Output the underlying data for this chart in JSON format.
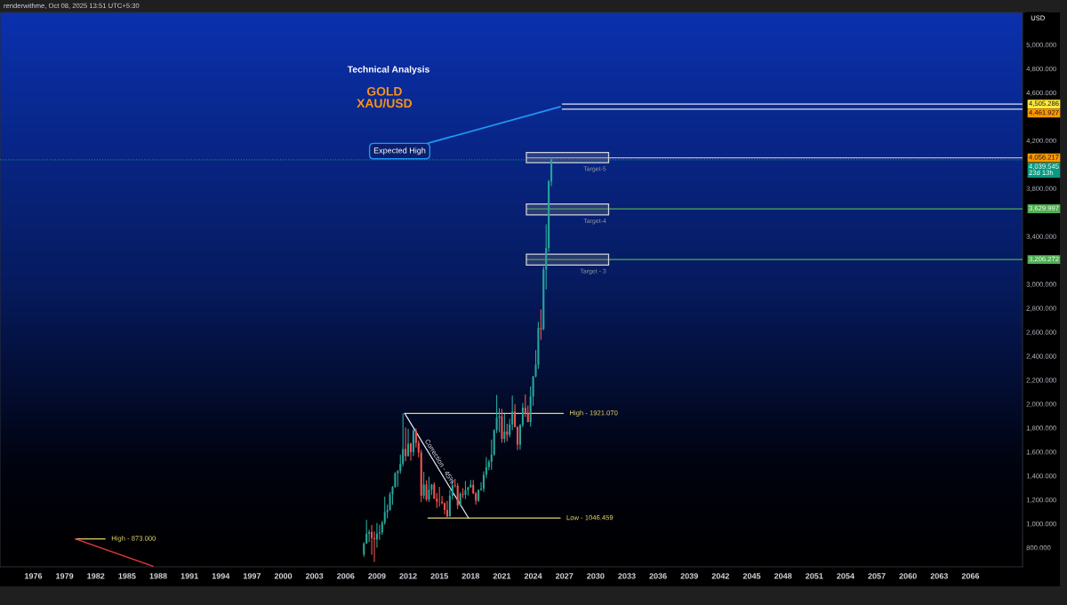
{
  "chart_data": {
    "type": "candlestick",
    "title": "Technical Analysis",
    "subtitle": "GOLD\nXAU/USD",
    "ylabel": "USD",
    "annotations": [
      "renderwithme, Oct 08, 2025 13:51 UTC+5:30",
      {
        "text": "Expected High",
        "x": 2026.6,
        "y": 4483
      }
    ],
    "x": [
      2007.75,
      2008.0,
      2008.25,
      2008.5,
      2008.75,
      2009.0,
      2009.25,
      2009.5,
      2009.75,
      2010.0,
      2010.25,
      2010.5,
      2010.75,
      2011.0,
      2011.25,
      2011.5,
      2011.75,
      2012.0,
      2012.25,
      2012.5,
      2012.75,
      2013.0,
      2013.25,
      2013.5,
      2013.75,
      2014.0,
      2014.25,
      2014.5,
      2014.75,
      2015.0,
      2015.25,
      2015.5,
      2015.75,
      2016.0,
      2016.25,
      2016.5,
      2016.75,
      2017.0,
      2017.25,
      2017.5,
      2017.75,
      2018.0,
      2018.25,
      2018.5,
      2018.75,
      2019.0,
      2019.25,
      2019.5,
      2019.75,
      2020.0,
      2020.25,
      2020.5,
      2020.75,
      2021.0,
      2021.25,
      2021.5,
      2021.75,
      2022.0,
      2022.25,
      2022.5,
      2022.75,
      2023.0,
      2023.25,
      2023.5,
      2023.75,
      2024.0,
      2024.25,
      2024.5,
      2024.75,
      2025.0,
      2025.25,
      2025.5,
      2025.75
    ],
    "ohlc": [
      [
        743,
        845,
        723,
        834
      ],
      [
        834,
        1033,
        832,
        916
      ],
      [
        916,
        950,
        845,
        930
      ],
      [
        930,
        988,
        740,
        880
      ],
      [
        880,
        935,
        681,
        870
      ],
      [
        870,
        1006,
        800,
        917
      ],
      [
        917,
        990,
        865,
        927
      ],
      [
        927,
        1024,
        908,
        1008
      ],
      [
        1008,
        1227,
        990,
        1096
      ],
      [
        1096,
        1162,
        1044,
        1113
      ],
      [
        1113,
        1265,
        1110,
        1244
      ],
      [
        1244,
        1315,
        1157,
        1307
      ],
      [
        1307,
        1431,
        1300,
        1421
      ],
      [
        1421,
        1448,
        1309,
        1439
      ],
      [
        1439,
        1577,
        1417,
        1500
      ],
      [
        1500,
        1921.07,
        1478,
        1624
      ],
      [
        1624,
        1803,
        1522,
        1565
      ],
      [
        1565,
        1792,
        1560,
        1669
      ],
      [
        1669,
        1677,
        1527,
        1598
      ],
      [
        1598,
        1790,
        1566,
        1776
      ],
      [
        1776,
        1796,
        1636,
        1675
      ],
      [
        1675,
        1696,
        1554,
        1595
      ],
      [
        1595,
        1617,
        1180,
        1234
      ],
      [
        1234,
        1434,
        1208,
        1327
      ],
      [
        1327,
        1361,
        1187,
        1202
      ],
      [
        1202,
        1392,
        1182,
        1284
      ],
      [
        1284,
        1332,
        1240,
        1327
      ],
      [
        1327,
        1345,
        1206,
        1210
      ],
      [
        1210,
        1255,
        1131,
        1184
      ],
      [
        1184,
        1307,
        1142,
        1183
      ],
      [
        1183,
        1232,
        1162,
        1172
      ],
      [
        1172,
        1178,
        1077,
        1115
      ],
      [
        1115,
        1191,
        1046.459,
        1061
      ],
      [
        1061,
        1282,
        1060,
        1233
      ],
      [
        1233,
        1362,
        1200,
        1321
      ],
      [
        1321,
        1375,
        1302,
        1316
      ],
      [
        1316,
        1337,
        1123,
        1152
      ],
      [
        1152,
        1264,
        1146,
        1249
      ],
      [
        1249,
        1296,
        1214,
        1242
      ],
      [
        1242,
        1357,
        1205,
        1280
      ],
      [
        1280,
        1307,
        1236,
        1303
      ],
      [
        1303,
        1366,
        1302,
        1325
      ],
      [
        1325,
        1365,
        1246,
        1253
      ],
      [
        1253,
        1265,
        1160,
        1192
      ],
      [
        1192,
        1287,
        1182,
        1282
      ],
      [
        1282,
        1346,
        1276,
        1292
      ],
      [
        1292,
        1438,
        1266,
        1409
      ],
      [
        1409,
        1557,
        1381,
        1472
      ],
      [
        1472,
        1535,
        1445,
        1517
      ],
      [
        1517,
        1703,
        1451,
        1577
      ],
      [
        1577,
        1788,
        1567,
        1781
      ],
      [
        1781,
        2075,
        1757,
        1886
      ],
      [
        1886,
        1966,
        1764,
        1898
      ],
      [
        1898,
        1959,
        1677,
        1708
      ],
      [
        1708,
        1916,
        1677,
        1770
      ],
      [
        1770,
        1834,
        1688,
        1743
      ],
      [
        1743,
        1877,
        1721,
        1829
      ],
      [
        1829,
        2070,
        1781,
        1937
      ],
      [
        1937,
        1998,
        1805,
        1807
      ],
      [
        1807,
        1814,
        1615,
        1660
      ],
      [
        1660,
        1833,
        1617,
        1824
      ],
      [
        1824,
        2009,
        1805,
        1969
      ],
      [
        1969,
        2079,
        1893,
        1919
      ],
      [
        1919,
        1987,
        1848,
        1849
      ],
      [
        1849,
        2146,
        1810,
        2063
      ],
      [
        2063,
        2236,
        1984,
        2230
      ],
      [
        2230,
        2450,
        2222,
        2327
      ],
      [
        2327,
        2685,
        2293,
        2635
      ],
      [
        2635,
        2790,
        2536,
        2625
      ],
      [
        2625,
        3148,
        2615,
        3124
      ],
      [
        3124,
        3500,
        2957,
        3303
      ],
      [
        3303,
        3872,
        3268,
        3859
      ],
      [
        3859,
        4059,
        3820,
        4039.545
      ]
    ],
    "colors": [
      "#26a69a",
      "#26a69a",
      "#26a69a",
      "#ef5350",
      "#ef5350",
      "#26a69a",
      "#26a69a",
      "#26a69a",
      "#26a69a",
      "#26a69a",
      "#26a69a",
      "#26a69a",
      "#26a69a",
      "#26a69a",
      "#26a69a",
      "#26a69a",
      "#ef5350",
      "#26a69a",
      "#ef5350",
      "#26a69a",
      "#ef5350",
      "#ef5350",
      "#ef5350",
      "#26a69a",
      "#ef5350",
      "#26a69a",
      "#26a69a",
      "#ef5350",
      "#ef5350",
      "#ef5350",
      "#ef5350",
      "#ef5350",
      "#ef5350",
      "#26a69a",
      "#26a69a",
      "#ef5350",
      "#ef5350",
      "#26a69a",
      "#ef5350",
      "#26a69a",
      "#26a69a",
      "#26a69a",
      "#ef5350",
      "#ef5350",
      "#26a69a",
      "#26a69a",
      "#26a69a",
      "#26a69a",
      "#26a69a",
      "#26a69a",
      "#26a69a",
      "#26a69a",
      "#26a69a",
      "#ef5350",
      "#26a69a",
      "#ef5350",
      "#26a69a",
      "#26a69a",
      "#ef5350",
      "#ef5350",
      "#26a69a",
      "#26a69a",
      "#ef5350",
      "#ef5350",
      "#26a69a",
      "#26a69a",
      "#26a69a",
      "#26a69a",
      "#ef5350",
      "#26a69a",
      "#26a69a",
      "#26a69a",
      "#26a69a"
    ],
    "series": [
      {
        "type": "line",
        "name": "High - 873.000",
        "color": "#e3d46a",
        "x": [
          1980.05,
          1982.9
        ],
        "values": [
          873,
          873
        ]
      },
      {
        "type": "line",
        "color": "#f23645",
        "x": [
          1980.05,
          1987.5
        ],
        "values": [
          873,
          645
        ]
      },
      {
        "type": "line",
        "name": "High - 1921.070",
        "color": "#e3d46a",
        "x": [
          2011.67,
          2026.9
        ],
        "values": [
          1921.07,
          1921.07
        ]
      },
      {
        "type": "line",
        "name": "Low - 1046.459",
        "color": "#e3d46a",
        "x": [
          2013.9,
          2026.6
        ],
        "values": [
          1046.459,
          1046.459
        ]
      },
      {
        "type": "line",
        "name": "Correction - 45%",
        "color": "#e0e3eb",
        "x": [
          2011.67,
          2017.8
        ],
        "values": [
          1921.07,
          1046.459
        ]
      },
      {
        "type": "line",
        "color": "#e0e3eb",
        "x": [
          2026.8,
          2071
        ],
        "values": [
          4505.286,
          4505.286
        ],
        "colors": [
          "#e0e3eb",
          "#ffeb3b"
        ],
        "value_labels": [
          null,
          "4,505.286"
        ]
      },
      {
        "type": "line",
        "color": "#e0e3eb",
        "x": [
          2026.8,
          2071
        ],
        "values": [
          4461.927,
          4461.927
        ],
        "colors": [
          "#e0e3eb",
          "#ff9800"
        ],
        "value_labels": [
          null,
          "4,461.927"
        ]
      },
      {
        "type": "line",
        "color": "#b2b5be",
        "x": [
          2023.4,
          2071
        ],
        "values": [
          4056.217,
          4056.217
        ],
        "colors": [
          "#b2b5be",
          "#ff9800"
        ],
        "value_labels": [
          null,
          "4,056.217"
        ]
      },
      {
        "type": "line",
        "color": "#4caf50",
        "x": [
          2023.4,
          2071
        ],
        "values": [
          3629.997,
          3629.997
        ],
        "colors": [
          "#4caf50",
          "#4caf50"
        ],
        "value_labels": [
          null,
          "3,629.997"
        ]
      },
      {
        "type": "line",
        "color": "#4caf50",
        "x": [
          2023.4,
          2071
        ],
        "values": [
          3206.272,
          3206.272
        ],
        "colors": [
          "#4caf50",
          "#4caf50"
        ],
        "value_labels": [
          null,
          "3,206.272"
        ]
      }
    ],
    "ref_lines": [
      {
        "axis": "y",
        "value": 4039.545,
        "label": "4,039.545\n23d 13h",
        "color": "#089981",
        "line_style": "dotted"
      }
    ],
    "bands": [
      {
        "axis": "y",
        "from": 4015,
        "to": 4100,
        "label": "Target-5",
        "color": "#787b86"
      },
      {
        "axis": "y",
        "from": 3580,
        "to": 3670,
        "label": "Target-4",
        "color": "#787b86"
      },
      {
        "axis": "y",
        "from": 3160,
        "to": 3250,
        "label": "Target - 3",
        "color": "#787b86"
      }
    ],
    "xlim": [
      1972.8,
      2071
    ],
    "xticks": [
      1976,
      1979,
      1982,
      1985,
      1988,
      1991,
      1994,
      1997,
      2000,
      2003,
      2006,
      2009,
      2012,
      2015,
      2018,
      2021,
      2024,
      2027,
      2030,
      2033,
      2036,
      2039,
      2042,
      2045,
      2048,
      2051,
      2054,
      2057,
      2060,
      2063,
      2066
    ],
    "ylim": [
      640,
      5270
    ],
    "yticks": [
      {
        "value": 800,
        "label": "800.000"
      },
      {
        "value": 1000,
        "label": "1,000.000"
      },
      {
        "value": 1200,
        "label": "1,200.000"
      },
      {
        "value": 1400,
        "label": "1,400.000"
      },
      {
        "value": 1600,
        "label": "1,600.000"
      },
      {
        "value": 1800,
        "label": "1,800.000"
      },
      {
        "value": 2000,
        "label": "2,000.000"
      },
      {
        "value": 2200,
        "label": "2,200.000"
      },
      {
        "value": 2400,
        "label": "2,400.000"
      },
      {
        "value": 2600,
        "label": "2,600.000"
      },
      {
        "value": 2800,
        "label": "2,800.000"
      },
      {
        "value": 3000,
        "label": "3,000.000"
      },
      {
        "value": 3400,
        "label": "3,400.000"
      },
      {
        "value": 3800,
        "label": "3,800.000"
      },
      {
        "value": 4200,
        "label": "4,200.000"
      },
      {
        "value": 4600,
        "label": "4,600.000"
      },
      {
        "value": 4800,
        "label": "4,800.000"
      },
      {
        "value": 5000,
        "label": "5,000.000"
      }
    ]
  }
}
